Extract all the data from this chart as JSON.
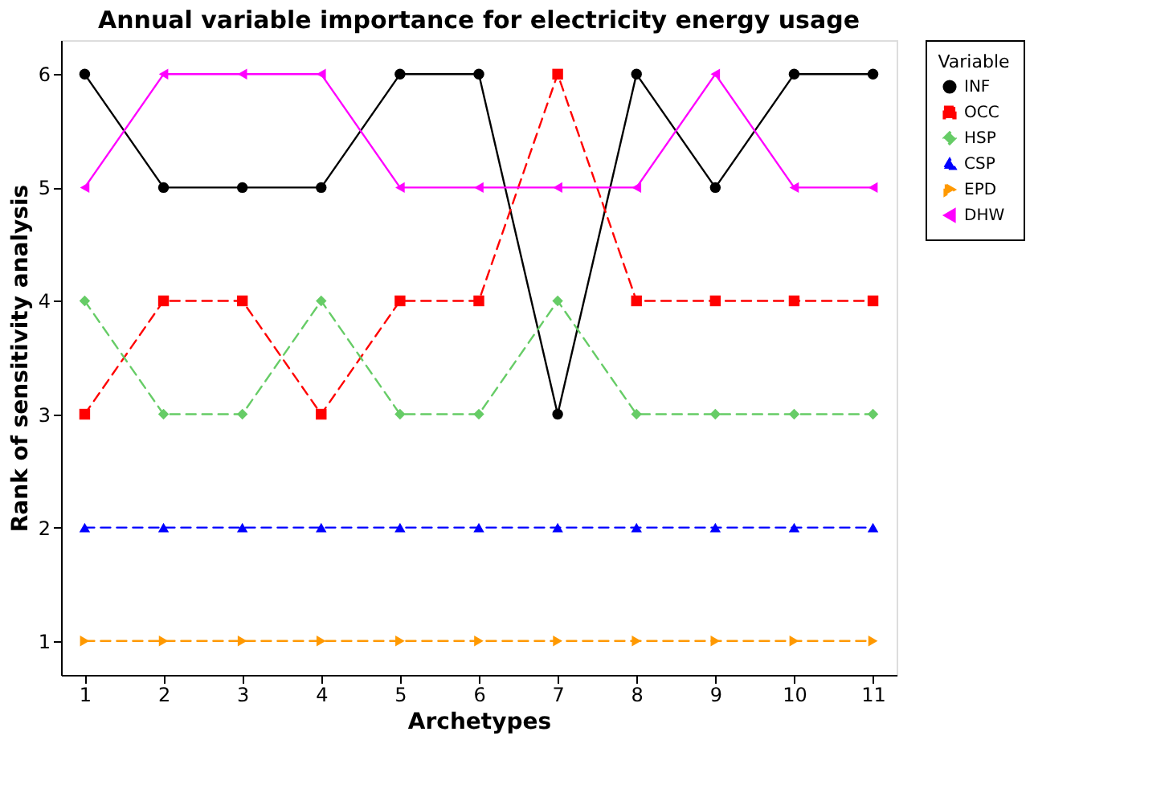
{
  "chart_data": {
    "type": "line",
    "title": "Annual variable importance for electricity energy usage",
    "xlabel": "Archetypes",
    "ylabel": "Rank of sensitivity analysis",
    "legend_title": "Variable",
    "x": [
      1,
      2,
      3,
      4,
      5,
      6,
      7,
      8,
      9,
      10,
      11
    ],
    "series": [
      {
        "name": "INF",
        "color": "#000000",
        "marker": "circle",
        "line_style": "solid",
        "values": [
          6,
          5,
          5,
          5,
          6,
          6,
          3,
          6,
          5,
          6,
          6
        ]
      },
      {
        "name": "OCC",
        "color": "#ff0000",
        "marker": "square",
        "line_style": "dashed",
        "values": [
          3,
          4,
          4,
          3,
          4,
          4,
          6,
          4,
          4,
          4,
          4
        ]
      },
      {
        "name": "HSP",
        "color": "#66cc66",
        "marker": "diamond",
        "line_style": "dashed",
        "values": [
          4,
          3,
          3,
          4,
          3,
          3,
          4,
          3,
          3,
          3,
          3
        ]
      },
      {
        "name": "CSP",
        "color": "#0000ff",
        "marker": "triangle-up",
        "line_style": "dashed",
        "values": [
          2,
          2,
          2,
          2,
          2,
          2,
          2,
          2,
          2,
          2,
          2
        ]
      },
      {
        "name": "EPD",
        "color": "#ff9900",
        "marker": "triangle-right",
        "line_style": "dashed",
        "values": [
          1,
          1,
          1,
          1,
          1,
          1,
          1,
          1,
          1,
          1,
          1
        ]
      },
      {
        "name": "DHW",
        "color": "#ff00ff",
        "marker": "triangle-left",
        "line_style": "solid",
        "values": [
          5,
          6,
          6,
          6,
          5,
          5,
          5,
          5,
          6,
          5,
          5
        ]
      }
    ],
    "xlim": [
      0.7,
      11.3
    ],
    "xticks": [
      1,
      2,
      3,
      4,
      5,
      6,
      7,
      8,
      9,
      10,
      11
    ],
    "ylim": [
      0.7,
      6.3
    ],
    "yticks": [
      1,
      2,
      3,
      4,
      5,
      6
    ],
    "grid": false,
    "legend": "right"
  }
}
